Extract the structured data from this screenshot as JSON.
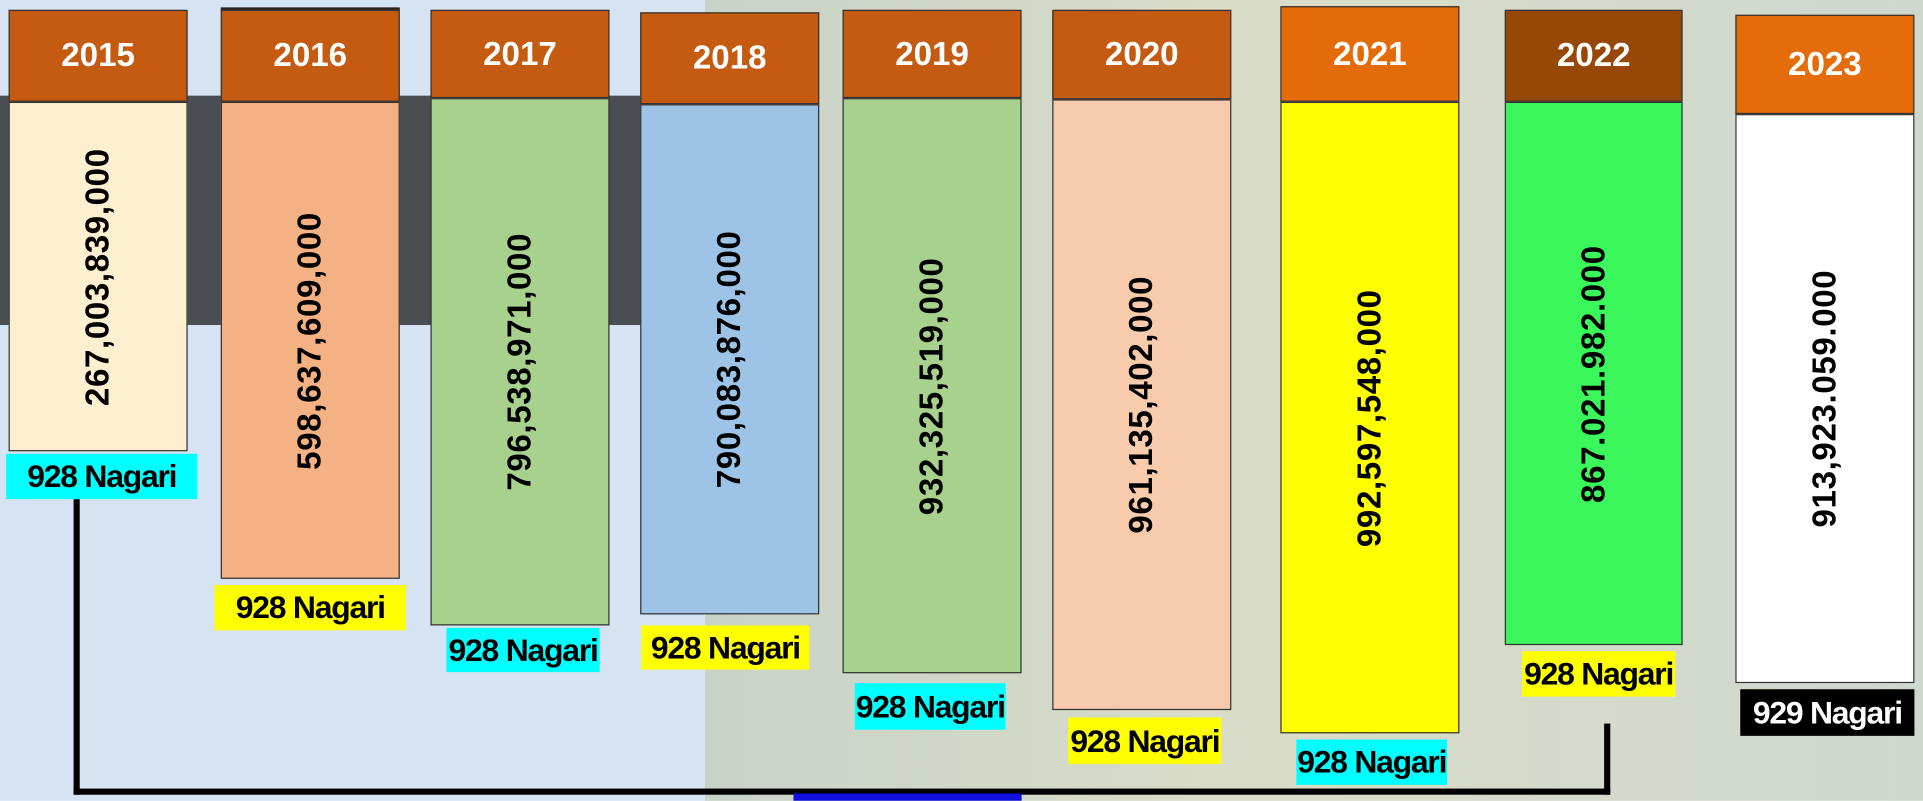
{
  "items": [
    {
      "year": "2015",
      "amount": "267,003,839,000",
      "nagari": "928 Nagari"
    },
    {
      "year": "2016",
      "amount": "598,637,609,000",
      "nagari": "928 Nagari"
    },
    {
      "year": "2017",
      "amount": "796,538,971,000",
      "nagari": "928 Nagari"
    },
    {
      "year": "2018",
      "amount": "790,083,876,000",
      "nagari": "928 Nagari"
    },
    {
      "year": "2019",
      "amount": "932,325,519,000",
      "nagari": "928 Nagari"
    },
    {
      "year": "2020",
      "amount": "961,135,402,000",
      "nagari": "928 Nagari"
    },
    {
      "year": "2021",
      "amount": "992,597,548,000",
      "nagari": "928 Nagari"
    },
    {
      "year": "2022",
      "amount": "867.021.982.000",
      "nagari": "928 Nagari"
    },
    {
      "year": "2023",
      "amount": "913,923.059.000",
      "nagari": "929 Nagari"
    }
  ]
}
